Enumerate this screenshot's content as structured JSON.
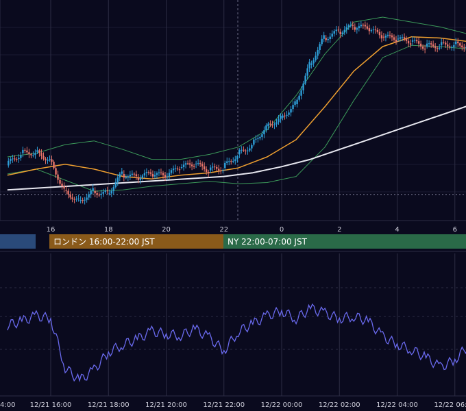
{
  "colors": {
    "background": "#0a0a1e",
    "grid": "#2c2c44",
    "up_candle": "#2e9fd8",
    "down_candle": "#e8756a",
    "ma_short": "#f0a030",
    "ma_long": "#e8e8f0",
    "bollinger": "#3c9a5a",
    "oscillator": "#6a6aee",
    "tokyo_session": "#2a4a7a",
    "london_session": "#8a5a1a",
    "ny_session": "#2a6a48",
    "axis_text": "#d0d0dc"
  },
  "sessions": {
    "tokyo_label": "",
    "london_label": "ロンドン 16:00-22:00 JST",
    "ny_label": "NY 22:00-07:00 JST"
  },
  "chart_data": [
    {
      "type": "candlestick",
      "title": "",
      "x_ticks": [
        "16",
        "18",
        "20",
        "22",
        "0",
        "2",
        "4",
        "6"
      ],
      "x_unit": "hour (JST)",
      "series": [
        {
          "kind": "close",
          "hours": [
            14.5,
            15.0,
            15.5,
            16.0,
            16.5,
            17.0,
            17.5,
            18.0,
            18.5,
            19.0,
            19.5,
            20.0,
            20.5,
            21.0,
            21.5,
            22.0,
            22.5,
            23.0,
            23.5,
            24.0,
            24.5,
            25.0,
            25.5,
            26.0,
            26.5,
            27.0,
            27.5,
            28.0,
            28.5,
            29.0,
            29.5,
            30.0,
            30.5
          ],
          "values": [
            155.5,
            156.5,
            156.6,
            156.0,
            153.5,
            152.6,
            153.4,
            153.2,
            154.8,
            154.5,
            154.8,
            154.6,
            155.3,
            155.6,
            155.1,
            155.3,
            156.4,
            157.2,
            158.7,
            159.4,
            160.5,
            163.7,
            165.9,
            166.4,
            166.8,
            166.7,
            166.0,
            165.8,
            165.6,
            165.2,
            165.3,
            165.4,
            165.3
          ]
        },
        {
          "kind": "ma_short",
          "hours": [
            14.5,
            15.5,
            16.5,
            17.5,
            18.5,
            19.5,
            20.5,
            21.5,
            22.5,
            23.5,
            24.5,
            25.5,
            26.5,
            27.5,
            28.5,
            29.5,
            30.5
          ],
          "values": [
            154.7,
            155.2,
            155.6,
            155.2,
            154.6,
            154.4,
            154.7,
            154.9,
            155.3,
            156.2,
            157.6,
            160.3,
            163.2,
            165.2,
            166.0,
            165.9,
            165.6
          ]
        },
        {
          "kind": "ma_long",
          "hours": [
            14.5,
            18.0,
            20.0,
            22.0,
            23.0,
            24.0,
            25.0,
            26.0,
            27.0,
            28.0,
            29.0,
            30.0,
            30.5
          ],
          "values": [
            153.5,
            154.0,
            154.3,
            154.6,
            154.9,
            155.4,
            156.0,
            156.8,
            157.6,
            158.4,
            159.2,
            160.0,
            160.4
          ]
        },
        {
          "kind": "bollinger_upper",
          "hours": [
            14.5,
            15.5,
            16.5,
            17.5,
            18.5,
            19.5,
            20.5,
            21.5,
            22.5,
            23.5,
            24.5,
            25.5,
            26.5,
            27.5,
            28.5,
            29.5,
            30.5
          ],
          "values": [
            156.2,
            156.5,
            157.2,
            157.5,
            156.8,
            156.0,
            156.0,
            156.4,
            157.0,
            158.4,
            161.2,
            164.6,
            167.2,
            167.6,
            167.2,
            166.8,
            166.2
          ]
        },
        {
          "kind": "bollinger_lower",
          "hours": [
            14.5,
            15.5,
            16.5,
            17.5,
            18.5,
            19.5,
            20.5,
            21.5,
            22.5,
            23.5,
            24.5,
            25.5,
            26.5,
            27.5,
            28.5,
            29.5,
            30.5
          ],
          "values": [
            154.8,
            155.2,
            154.3,
            153.4,
            153.5,
            153.8,
            154.0,
            154.2,
            154.0,
            154.1,
            154.6,
            157.0,
            160.8,
            164.3,
            165.3,
            165.2,
            165.0
          ]
        }
      ]
    },
    {
      "type": "line",
      "title": "",
      "x_ticks": [
        "12/21 16:00",
        "12/21 18:00",
        "12/21 20:00",
        "12/21 22:00",
        "12/22 00:00",
        "12/22 02:00",
        "12/22 04:00",
        "12/22 06:00"
      ],
      "x_tick_left_partial": "4:00",
      "series": [
        {
          "kind": "oscillator",
          "hours": [
            14.5,
            15.0,
            15.5,
            16.0,
            16.5,
            17.0,
            17.5,
            18.0,
            18.5,
            19.0,
            19.5,
            20.0,
            20.5,
            21.0,
            21.5,
            22.0,
            22.5,
            23.0,
            23.5,
            24.0,
            24.5,
            25.0,
            25.5,
            26.0,
            26.5,
            27.0,
            27.5,
            28.0,
            28.5,
            29.0,
            29.5,
            30.0,
            30.5
          ],
          "values": [
            55,
            58,
            62,
            60,
            22,
            12,
            20,
            34,
            40,
            44,
            50,
            48,
            47,
            52,
            45,
            35,
            50,
            56,
            62,
            66,
            60,
            68,
            64,
            60,
            62,
            58,
            46,
            40,
            36,
            30,
            22,
            28,
            40
          ]
        }
      ]
    }
  ]
}
